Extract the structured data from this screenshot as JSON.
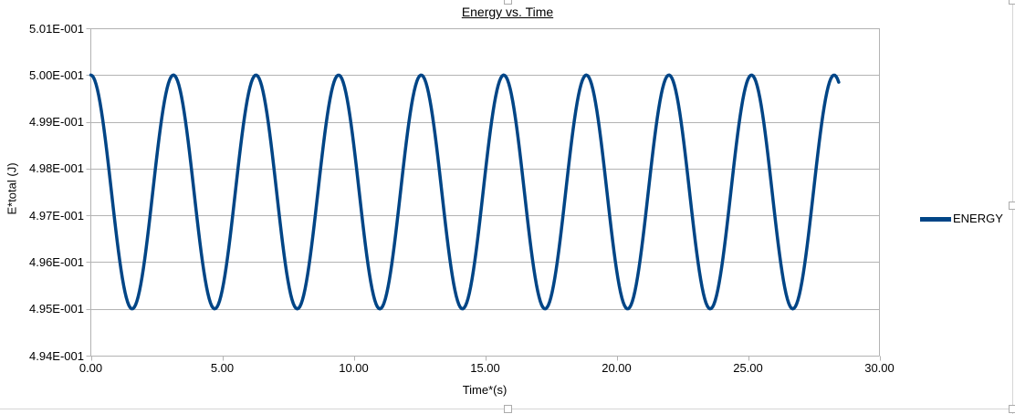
{
  "colors": {
    "background": "#FFFFFF",
    "text": "#000000",
    "gridline": "#B3B3B3",
    "axis": "#B3B3B3",
    "series_blue": "#004586",
    "selection_border": "#D5D5D5",
    "handle_border": "#ABABAB",
    "handle_fill": "#FFFFFF"
  },
  "chart_data": {
    "type": "line",
    "title": "Energy vs. Time",
    "title_underlined": true,
    "xlabel": "Time*(s)",
    "ylabel": "E*total (J)",
    "xlim": [
      0,
      30
    ],
    "ylim": [
      0.494,
      0.501
    ],
    "grid": "horizontal-only",
    "plot_border_right": true,
    "x_ticks": {
      "values": [
        0,
        5,
        10,
        15,
        20,
        25,
        30
      ],
      "labels": [
        "0.00",
        "5.00",
        "10.00",
        "15.00",
        "20.00",
        "25.00",
        "30.00"
      ]
    },
    "y_ticks": {
      "values": [
        0.501,
        0.5,
        0.499,
        0.498,
        0.497,
        0.496,
        0.495,
        0.494
      ],
      "labels": [
        "5.01E-001",
        "5.00E-001",
        "4.99E-001",
        "4.98E-001",
        "4.97E-001",
        "4.96E-001",
        "4.95E-001",
        "4.94E-001"
      ]
    },
    "legend": {
      "position": "right-middle",
      "label": "ENERGY",
      "color": "#004586"
    },
    "series": [
      {
        "name": "ENERGY",
        "color": "#004586",
        "line_width": 3.5,
        "model": "E(t) = 0.4975 + 0.0025*cos(2*t)",
        "midline": 0.4975,
        "amplitude": 0.0025,
        "omega": 2.0,
        "phase": 0.0,
        "t_start": 0.0,
        "t_end": 28.45,
        "t_step": 0.05,
        "period": 3.1416,
        "peak_value": 0.5,
        "trough_value": 0.495,
        "peak_times": [
          0.0,
          3.14,
          6.28,
          9.42,
          12.57,
          15.71,
          18.85,
          21.99,
          25.13,
          28.27
        ],
        "trough_times": [
          1.57,
          4.71,
          7.85,
          10.996,
          14.14,
          17.28,
          20.42,
          23.56,
          26.7
        ]
      }
    ]
  },
  "selection": {
    "state": "chart-object-selected",
    "visible_handles": [
      "top-center",
      "top-right",
      "right-middle",
      "bottom-center",
      "bottom-right"
    ]
  }
}
